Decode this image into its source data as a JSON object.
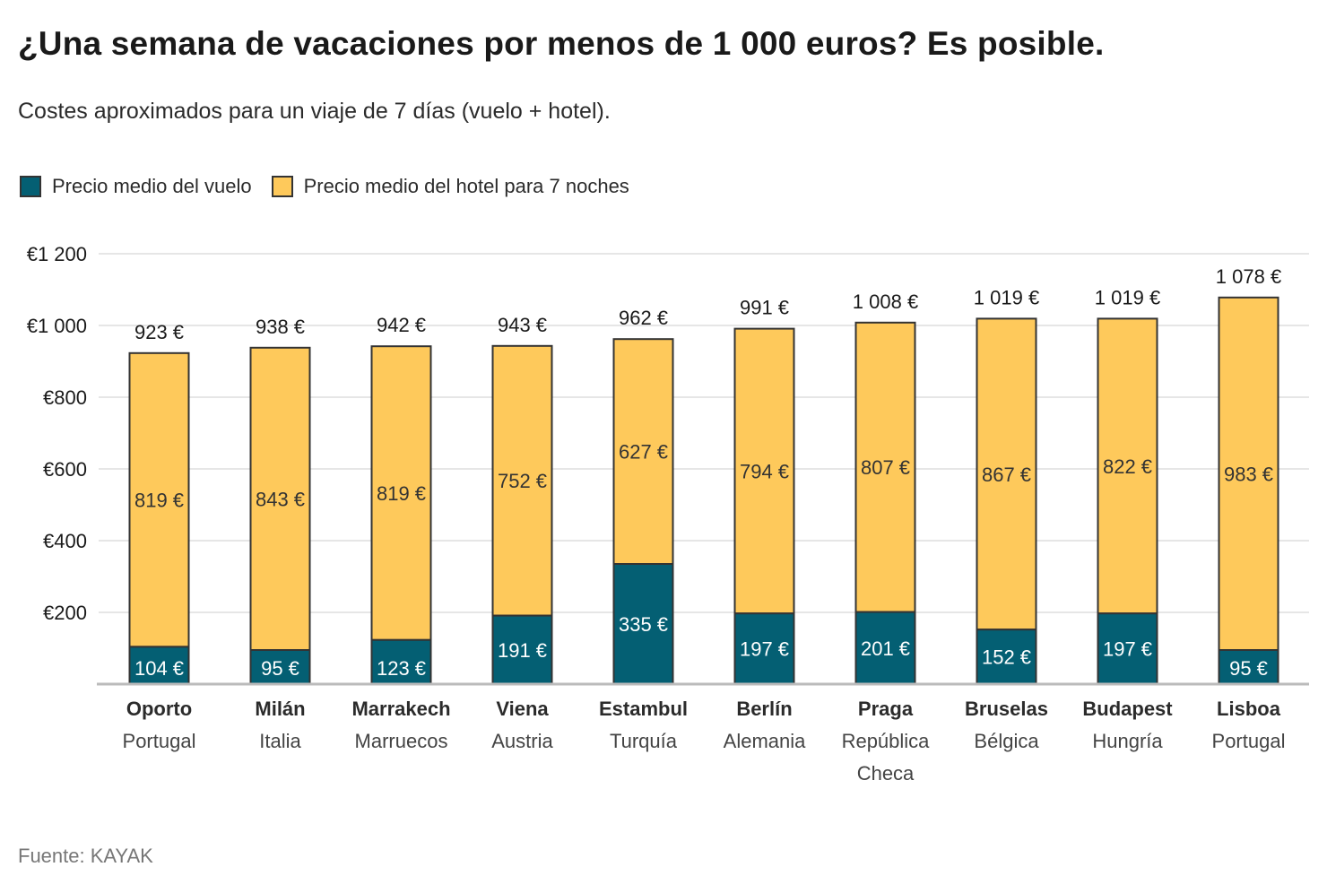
{
  "title": "¿Una semana de vacaciones por menos de 1 000 euros? Es posible.",
  "subtitle": "Costes aproximados para un viaje de 7 días (vuelo + hotel).",
  "source": "Fuente: KAYAK",
  "colors": {
    "flight": "#045f73",
    "hotel": "#fec95b",
    "outline": "#333333",
    "grid": "#dddddd"
  },
  "chart_data": {
    "type": "bar",
    "stacked": true,
    "categories": [
      "Oporto",
      "Milán",
      "Marrakech",
      "Viena",
      "Estambul",
      "Berlín",
      "Praga",
      "Bruselas",
      "Budapest",
      "Lisboa"
    ],
    "countries": [
      "Portugal",
      "Italia",
      "Marruecos",
      "Austria",
      "Turquía",
      "Alemania",
      "República Checa",
      "Bélgica",
      "Hungría",
      "Portugal"
    ],
    "series": [
      {
        "name": "Precio medio del vuelo",
        "values": [
          104,
          95,
          123,
          191,
          335,
          197,
          201,
          152,
          197,
          95
        ]
      },
      {
        "name": "Precio medio del hotel para 7 noches",
        "values": [
          819,
          843,
          819,
          752,
          627,
          794,
          807,
          867,
          822,
          983
        ]
      }
    ],
    "totals": [
      923,
      938,
      942,
      943,
      962,
      991,
      1008,
      1019,
      1019,
      1078
    ],
    "value_suffix": " €",
    "ylim": [
      0,
      1200
    ],
    "yticks": [
      200,
      400,
      600,
      800,
      1000,
      1200
    ],
    "ytick_labels": [
      "€200",
      "€400",
      "€600",
      "€800",
      "€1 000",
      "€1 200"
    ],
    "grid": true,
    "legend_position": "top-left"
  }
}
